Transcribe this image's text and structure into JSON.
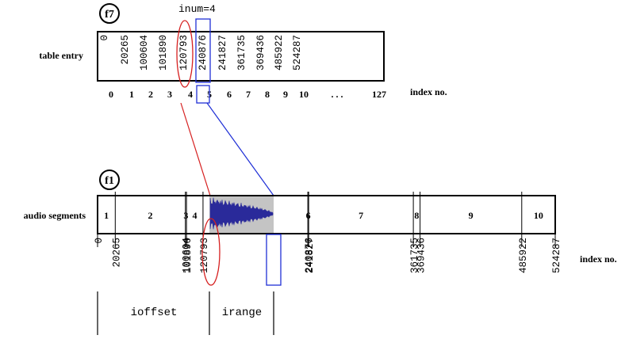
{
  "table": {
    "badge": "f7",
    "row_label": "table entry",
    "inum_label": "inum=4",
    "entries": [
      "0",
      "20265",
      "100604",
      "101890",
      "120793",
      "240876",
      "241827",
      "361735",
      "369436",
      "485922",
      "524287"
    ],
    "indices": [
      "0",
      "1",
      "2",
      "3",
      "4",
      "5",
      "6",
      "7",
      "8",
      "9",
      "10"
    ],
    "ellipsis": ". . .",
    "last_index": "127",
    "index_label": "index no."
  },
  "audio": {
    "badge": "f1",
    "row_label": "audio segments",
    "segments": [
      "1",
      "2",
      "3",
      "4",
      "",
      "6",
      "7",
      "8",
      "9",
      "10"
    ],
    "offsets": [
      "0",
      "20265",
      "100604",
      "101890",
      "120793",
      "240876",
      "241827",
      "361735",
      "369436",
      "485922",
      "524287"
    ],
    "index_label": "index no."
  },
  "params": {
    "ioffset": "ioffset",
    "irange": "irange"
  },
  "colors": {
    "line": "#000000",
    "highlight_red": "#d62020",
    "highlight_blue": "#1f2fd6",
    "segment_fill": "#c4c4c4",
    "waveform": "#2a2a9a"
  }
}
